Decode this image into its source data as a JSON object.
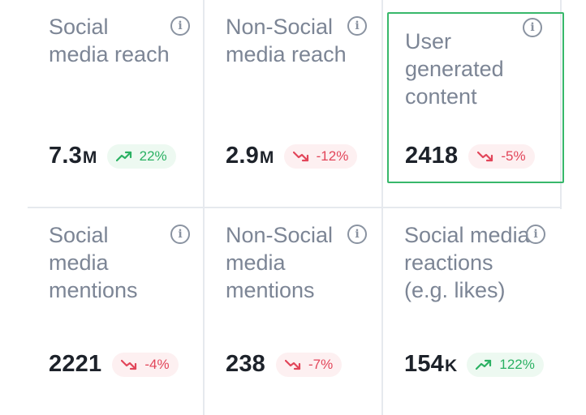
{
  "colors": {
    "up": "#2bb163",
    "down": "#e2465a",
    "highlight_border": "#38b86b"
  },
  "info_icon_glyph": "i",
  "cards": [
    {
      "title": "Social media reach",
      "value": "7.3",
      "suffix": "M",
      "change": "22%",
      "trend": "up",
      "highlighted": false
    },
    {
      "title": "Non-Social media reach",
      "value": "2.9",
      "suffix": "M",
      "change": "-12%",
      "trend": "down",
      "highlighted": false
    },
    {
      "title": "User generated content",
      "value": "2418",
      "suffix": "",
      "change": "-5%",
      "trend": "down",
      "highlighted": true
    },
    {
      "title": "Social media mentions",
      "value": "2221",
      "suffix": "",
      "change": "-4%",
      "trend": "down",
      "highlighted": false
    },
    {
      "title": "Non-Social media mentions",
      "value": "238",
      "suffix": "",
      "change": "-7%",
      "trend": "down",
      "highlighted": false
    },
    {
      "title": "Social media reactions (e.g. likes)",
      "value": "154",
      "suffix": "K",
      "change": "122%",
      "trend": "up",
      "highlighted": false
    }
  ]
}
